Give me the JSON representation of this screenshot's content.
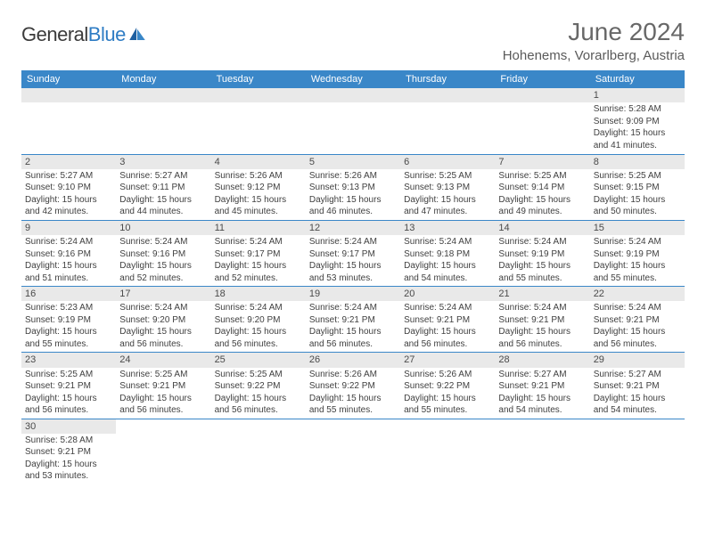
{
  "logo": {
    "general": "General",
    "blue": "Blue",
    "icon_colors": [
      "#1e5fa0",
      "#3a87c8"
    ]
  },
  "title": "June 2024",
  "location": "Hohenems, Vorarlberg, Austria",
  "header_bg": "#3a87c8",
  "header_text_color": "#ffffff",
  "grid_line_color": "#3a87c8",
  "daynum_bg": "#e9e9e9",
  "text_color": "#3f3f3f",
  "days_of_week": [
    "Sunday",
    "Monday",
    "Tuesday",
    "Wednesday",
    "Thursday",
    "Friday",
    "Saturday"
  ],
  "weeks": [
    [
      null,
      null,
      null,
      null,
      null,
      null,
      {
        "n": "1",
        "sr": "Sunrise: 5:28 AM",
        "ss": "Sunset: 9:09 PM",
        "dl": "Daylight: 15 hours and 41 minutes."
      }
    ],
    [
      {
        "n": "2",
        "sr": "Sunrise: 5:27 AM",
        "ss": "Sunset: 9:10 PM",
        "dl": "Daylight: 15 hours and 42 minutes."
      },
      {
        "n": "3",
        "sr": "Sunrise: 5:27 AM",
        "ss": "Sunset: 9:11 PM",
        "dl": "Daylight: 15 hours and 44 minutes."
      },
      {
        "n": "4",
        "sr": "Sunrise: 5:26 AM",
        "ss": "Sunset: 9:12 PM",
        "dl": "Daylight: 15 hours and 45 minutes."
      },
      {
        "n": "5",
        "sr": "Sunrise: 5:26 AM",
        "ss": "Sunset: 9:13 PM",
        "dl": "Daylight: 15 hours and 46 minutes."
      },
      {
        "n": "6",
        "sr": "Sunrise: 5:25 AM",
        "ss": "Sunset: 9:13 PM",
        "dl": "Daylight: 15 hours and 47 minutes."
      },
      {
        "n": "7",
        "sr": "Sunrise: 5:25 AM",
        "ss": "Sunset: 9:14 PM",
        "dl": "Daylight: 15 hours and 49 minutes."
      },
      {
        "n": "8",
        "sr": "Sunrise: 5:25 AM",
        "ss": "Sunset: 9:15 PM",
        "dl": "Daylight: 15 hours and 50 minutes."
      }
    ],
    [
      {
        "n": "9",
        "sr": "Sunrise: 5:24 AM",
        "ss": "Sunset: 9:16 PM",
        "dl": "Daylight: 15 hours and 51 minutes."
      },
      {
        "n": "10",
        "sr": "Sunrise: 5:24 AM",
        "ss": "Sunset: 9:16 PM",
        "dl": "Daylight: 15 hours and 52 minutes."
      },
      {
        "n": "11",
        "sr": "Sunrise: 5:24 AM",
        "ss": "Sunset: 9:17 PM",
        "dl": "Daylight: 15 hours and 52 minutes."
      },
      {
        "n": "12",
        "sr": "Sunrise: 5:24 AM",
        "ss": "Sunset: 9:17 PM",
        "dl": "Daylight: 15 hours and 53 minutes."
      },
      {
        "n": "13",
        "sr": "Sunrise: 5:24 AM",
        "ss": "Sunset: 9:18 PM",
        "dl": "Daylight: 15 hours and 54 minutes."
      },
      {
        "n": "14",
        "sr": "Sunrise: 5:24 AM",
        "ss": "Sunset: 9:19 PM",
        "dl": "Daylight: 15 hours and 55 minutes."
      },
      {
        "n": "15",
        "sr": "Sunrise: 5:24 AM",
        "ss": "Sunset: 9:19 PM",
        "dl": "Daylight: 15 hours and 55 minutes."
      }
    ],
    [
      {
        "n": "16",
        "sr": "Sunrise: 5:23 AM",
        "ss": "Sunset: 9:19 PM",
        "dl": "Daylight: 15 hours and 55 minutes."
      },
      {
        "n": "17",
        "sr": "Sunrise: 5:24 AM",
        "ss": "Sunset: 9:20 PM",
        "dl": "Daylight: 15 hours and 56 minutes."
      },
      {
        "n": "18",
        "sr": "Sunrise: 5:24 AM",
        "ss": "Sunset: 9:20 PM",
        "dl": "Daylight: 15 hours and 56 minutes."
      },
      {
        "n": "19",
        "sr": "Sunrise: 5:24 AM",
        "ss": "Sunset: 9:21 PM",
        "dl": "Daylight: 15 hours and 56 minutes."
      },
      {
        "n": "20",
        "sr": "Sunrise: 5:24 AM",
        "ss": "Sunset: 9:21 PM",
        "dl": "Daylight: 15 hours and 56 minutes."
      },
      {
        "n": "21",
        "sr": "Sunrise: 5:24 AM",
        "ss": "Sunset: 9:21 PM",
        "dl": "Daylight: 15 hours and 56 minutes."
      },
      {
        "n": "22",
        "sr": "Sunrise: 5:24 AM",
        "ss": "Sunset: 9:21 PM",
        "dl": "Daylight: 15 hours and 56 minutes."
      }
    ],
    [
      {
        "n": "23",
        "sr": "Sunrise: 5:25 AM",
        "ss": "Sunset: 9:21 PM",
        "dl": "Daylight: 15 hours and 56 minutes."
      },
      {
        "n": "24",
        "sr": "Sunrise: 5:25 AM",
        "ss": "Sunset: 9:21 PM",
        "dl": "Daylight: 15 hours and 56 minutes."
      },
      {
        "n": "25",
        "sr": "Sunrise: 5:25 AM",
        "ss": "Sunset: 9:22 PM",
        "dl": "Daylight: 15 hours and 56 minutes."
      },
      {
        "n": "26",
        "sr": "Sunrise: 5:26 AM",
        "ss": "Sunset: 9:22 PM",
        "dl": "Daylight: 15 hours and 55 minutes."
      },
      {
        "n": "27",
        "sr": "Sunrise: 5:26 AM",
        "ss": "Sunset: 9:22 PM",
        "dl": "Daylight: 15 hours and 55 minutes."
      },
      {
        "n": "28",
        "sr": "Sunrise: 5:27 AM",
        "ss": "Sunset: 9:21 PM",
        "dl": "Daylight: 15 hours and 54 minutes."
      },
      {
        "n": "29",
        "sr": "Sunrise: 5:27 AM",
        "ss": "Sunset: 9:21 PM",
        "dl": "Daylight: 15 hours and 54 minutes."
      }
    ],
    [
      {
        "n": "30",
        "sr": "Sunrise: 5:28 AM",
        "ss": "Sunset: 9:21 PM",
        "dl": "Daylight: 15 hours and 53 minutes."
      },
      null,
      null,
      null,
      null,
      null,
      null
    ]
  ]
}
